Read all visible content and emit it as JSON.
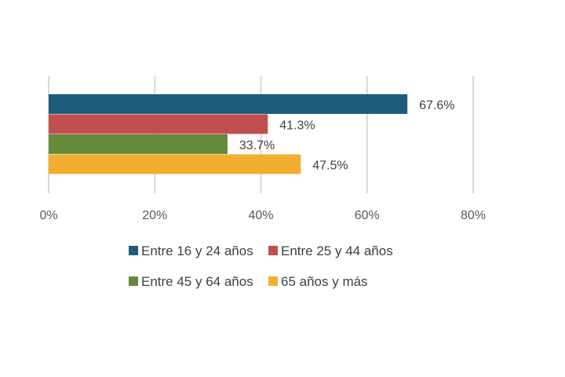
{
  "chart_data": {
    "type": "bar",
    "orientation": "horizontal",
    "grouping": "clustered",
    "title": "",
    "xlabel": "",
    "ylabel": "",
    "xlim": [
      0,
      80
    ],
    "xticks": [
      "0%",
      "20%",
      "40%",
      "60%",
      "80%"
    ],
    "xtick_values": [
      0,
      20,
      40,
      60,
      80
    ],
    "grid": true,
    "legend_position": "bottom",
    "series": [
      {
        "name": "Entre 16 y 24 años",
        "value": 67.6,
        "label": "67.6%",
        "color": "#1f5c7c"
      },
      {
        "name": "Entre 25 y 44 años",
        "value": 41.3,
        "label": "41.3%",
        "color": "#c0504d"
      },
      {
        "name": "Entre 45 y 64 años",
        "value": 33.7,
        "label": "33.7%",
        "color": "#648a3a"
      },
      {
        "name": "65 años y más",
        "value": 47.5,
        "label": "47.5%",
        "color": "#f2ae2e"
      }
    ]
  }
}
